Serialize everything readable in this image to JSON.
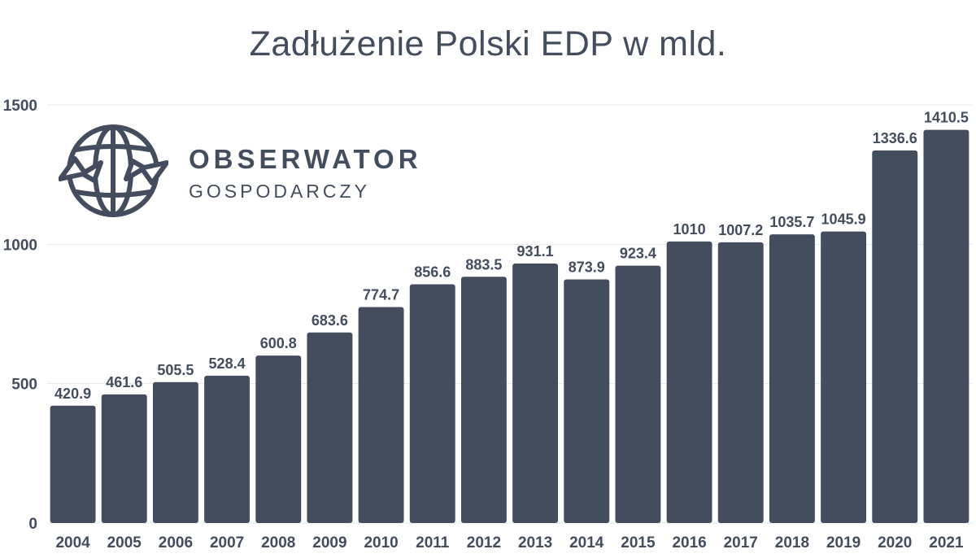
{
  "logo": {
    "name": "OBSERWATOR",
    "subtitle": "GOSPODARCZY",
    "icon": "globe-with-arrows-icon"
  },
  "colors": {
    "bar": "#444d5e",
    "text": "#444d5e",
    "grid": "#e6e7ea",
    "background": "#ffffff"
  },
  "chart_data": {
    "type": "bar",
    "title": "Zadłużenie Polski EDP w mld.",
    "xlabel": "",
    "ylabel": "",
    "categories": [
      "2004",
      "2005",
      "2006",
      "2007",
      "2008",
      "2009",
      "2010",
      "2011",
      "2012",
      "2013",
      "2014",
      "2015",
      "2016",
      "2017",
      "2018",
      "2019",
      "2020",
      "2021"
    ],
    "values": [
      420.9,
      461.6,
      505.5,
      528.4,
      600.8,
      683.6,
      774.7,
      856.6,
      883.5,
      931.1,
      873.9,
      923.4,
      1010,
      1007.2,
      1035.7,
      1045.9,
      1336.6,
      1410.5
    ],
    "value_labels": [
      "420.9",
      "461.6",
      "505.5",
      "528.4",
      "600.8",
      "683.6",
      "774.7",
      "856.6",
      "883.5",
      "931.1",
      "873.9",
      "923.4",
      "1010",
      "1007.2",
      "1035.7",
      "1045.9",
      "1336.6",
      "1410.5"
    ],
    "ylim": [
      0,
      1500
    ],
    "yticks": [
      0,
      500,
      1000,
      1500
    ],
    "ytick_labels": [
      "0",
      "500",
      "1000",
      "1500"
    ],
    "grid": true,
    "legend": "none"
  }
}
